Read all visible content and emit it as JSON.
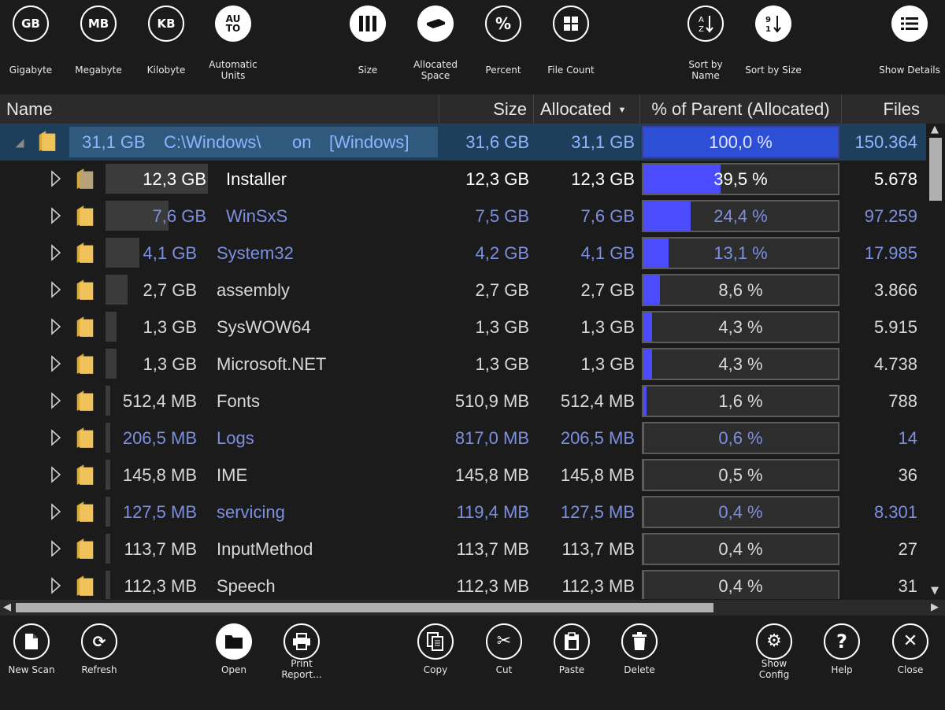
{
  "toolbar_top": {
    "gigabyte": {
      "glyph": "GB",
      "label": "Gigabyte"
    },
    "megabyte": {
      "glyph": "MB",
      "label": "Megabyte"
    },
    "kilobyte": {
      "glyph": "KB",
      "label": "Kilobyte"
    },
    "auto": {
      "glyph1": "AU",
      "glyph2": "TO",
      "label1": "Automatic",
      "label2": "Units"
    },
    "size": {
      "label": "Size"
    },
    "allocated": {
      "label1": "Allocated",
      "label2": "Space"
    },
    "percent": {
      "glyph": "%",
      "label": "Percent"
    },
    "filecount": {
      "label": "File Count"
    },
    "sortname": {
      "label1": "Sort by",
      "label2": "Name"
    },
    "sortsize": {
      "label": "Sort by Size"
    },
    "details": {
      "label": "Show Details"
    }
  },
  "columns": {
    "name": "Name",
    "size": "Size",
    "allocated": "Allocated",
    "percent": "% of Parent (Allocated)",
    "files": "Files"
  },
  "root": {
    "size_label": "31,1 GB",
    "path": "C:\\Windows\\",
    "on": "on",
    "drive": "[Windows]",
    "size": "31,6 GB",
    "allocated": "31,1 GB",
    "percent": "100,0 %",
    "percent_value": 100.0,
    "files": "150.364"
  },
  "rows": [
    {
      "size_label": "12,3 GB",
      "name": "Installer",
      "size": "12,3 GB",
      "allocated": "12,3 GB",
      "percent": "39,5 %",
      "percent_value": 39.5,
      "files": "5.678",
      "style": "white"
    },
    {
      "size_label": "7,6 GB",
      "name": "WinSxS",
      "size": "7,5 GB",
      "allocated": "7,6 GB",
      "percent": "24,4 %",
      "percent_value": 24.4,
      "files": "97.259",
      "style": "blue"
    },
    {
      "size_label": "4,1 GB",
      "name": "System32",
      "size": "4,2 GB",
      "allocated": "4,1 GB",
      "percent": "13,1 %",
      "percent_value": 13.1,
      "files": "17.985",
      "style": "blue"
    },
    {
      "size_label": "2,7 GB",
      "name": "assembly",
      "size": "2,7 GB",
      "allocated": "2,7 GB",
      "percent": "8,6 %",
      "percent_value": 8.6,
      "files": "3.866",
      "style": "normal"
    },
    {
      "size_label": "1,3 GB",
      "name": "SysWOW64",
      "size": "1,3 GB",
      "allocated": "1,3 GB",
      "percent": "4,3 %",
      "percent_value": 4.3,
      "files": "5.915",
      "style": "normal"
    },
    {
      "size_label": "1,3 GB",
      "name": "Microsoft.NET",
      "size": "1,3 GB",
      "allocated": "1,3 GB",
      "percent": "4,3 %",
      "percent_value": 4.3,
      "files": "4.738",
      "style": "normal"
    },
    {
      "size_label": "512,4 MB",
      "name": "Fonts",
      "size": "510,9 MB",
      "allocated": "512,4 MB",
      "percent": "1,6 %",
      "percent_value": 1.6,
      "files": "788",
      "style": "normal"
    },
    {
      "size_label": "206,5 MB",
      "name": "Logs",
      "size": "817,0 MB",
      "allocated": "206,5 MB",
      "percent": "0,6 %",
      "percent_value": 0.6,
      "files": "14",
      "style": "blue"
    },
    {
      "size_label": "145,8 MB",
      "name": "IME",
      "size": "145,8 MB",
      "allocated": "145,8 MB",
      "percent": "0,5 %",
      "percent_value": 0.5,
      "files": "36",
      "style": "normal"
    },
    {
      "size_label": "127,5 MB",
      "name": "servicing",
      "size": "119,4 MB",
      "allocated": "127,5 MB",
      "percent": "0,4 %",
      "percent_value": 0.4,
      "files": "8.301",
      "style": "blue"
    },
    {
      "size_label": "113,7 MB",
      "name": "InputMethod",
      "size": "113,7 MB",
      "allocated": "113,7 MB",
      "percent": "0,4 %",
      "percent_value": 0.4,
      "files": "27",
      "style": "normal"
    },
    {
      "size_label": "112,3 MB",
      "name": "Speech",
      "size": "112,3 MB",
      "allocated": "112,3 MB",
      "percent": "0,4 %",
      "percent_value": 0.4,
      "files": "31",
      "style": "normal"
    }
  ],
  "colors": {
    "bar_fill": "#4b4bff",
    "selected_row": "#1e3f5c",
    "blue_text": "#7d8fe0",
    "folder": "#f0c35a"
  },
  "toolbar_bottom": {
    "newscan": {
      "label": "New Scan"
    },
    "refresh": {
      "label": "Refresh"
    },
    "open": {
      "label": "Open"
    },
    "print": {
      "label1": "Print",
      "label2": "Report..."
    },
    "copy": {
      "label": "Copy"
    },
    "cut": {
      "label": "Cut"
    },
    "paste": {
      "label": "Paste"
    },
    "delete": {
      "label": "Delete"
    },
    "config": {
      "label1": "Show",
      "label2": "Config"
    },
    "help": {
      "glyph": "?",
      "label": "Help"
    },
    "close": {
      "glyph": "✕",
      "label": "Close"
    }
  }
}
